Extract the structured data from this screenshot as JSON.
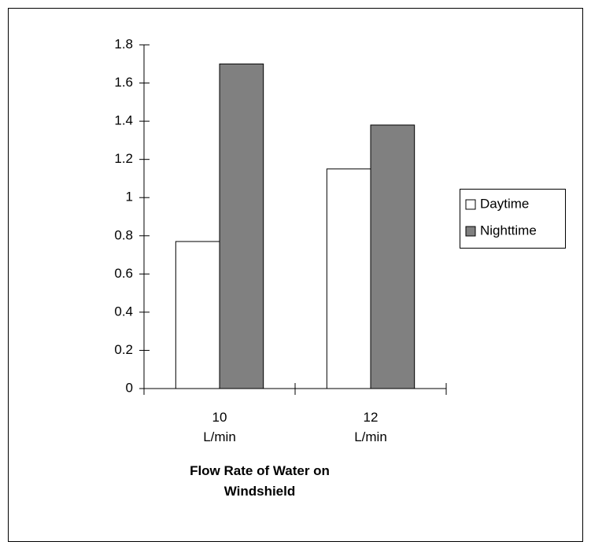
{
  "chart_data": {
    "type": "bar",
    "x_label": "Flow Rate of Water on Windshield",
    "categories": [
      "10 L/min",
      "12 L/min"
    ],
    "series": [
      {
        "name": "Daytime",
        "color": "#ffffff",
        "values": [
          0.77,
          1.15
        ]
      },
      {
        "name": "Nighttime",
        "color": "#808080",
        "values": [
          1.7,
          1.38
        ]
      }
    ],
    "ylim": [
      0,
      1.8
    ],
    "yticks": [
      0,
      0.2,
      0.4,
      0.6,
      0.8,
      1,
      1.2,
      1.4,
      1.6,
      1.8
    ],
    "grid": false,
    "legend": "right"
  }
}
